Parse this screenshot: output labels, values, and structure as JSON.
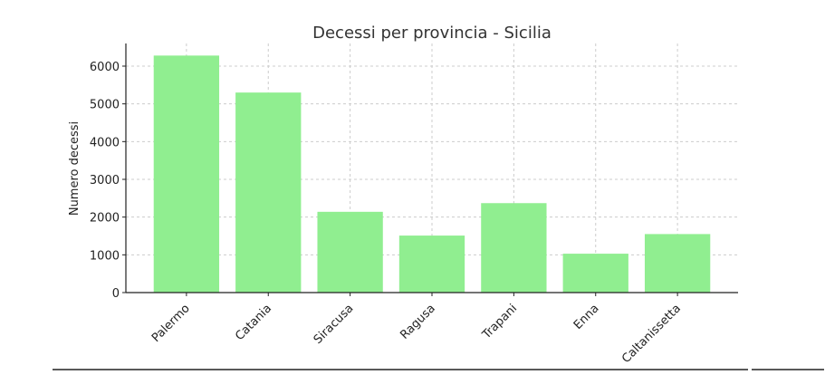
{
  "chart_data": {
    "type": "bar",
    "title": "Decessi per provincia - Sicilia",
    "xlabel": "",
    "ylabel": "Numero decessi",
    "categories": [
      "Palermo",
      "Catania",
      "Siracusa",
      "Ragusa",
      "Trapani",
      "Enna",
      "Caltanissetta"
    ],
    "values": [
      6280,
      5300,
      2140,
      1510,
      2370,
      1030,
      1550
    ],
    "ylim": [
      0,
      6600
    ],
    "yticks": [
      0,
      1000,
      2000,
      3000,
      4000,
      5000,
      6000
    ],
    "grid": true,
    "bar_color": "#90EE90",
    "x_tick_rotation": 45
  }
}
